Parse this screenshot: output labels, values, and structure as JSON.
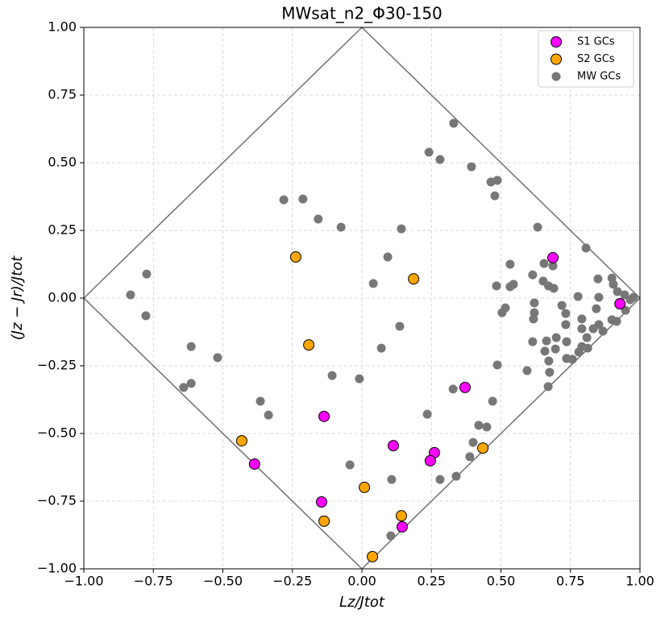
{
  "chart_data": {
    "type": "scatter",
    "title": "MWsat_n2_Φ30-150",
    "x_label": "Lz/Jtot",
    "y_label": "(Jz − Jr)/Jtot",
    "xlim": [
      -1,
      1
    ],
    "ylim": [
      -1,
      1
    ],
    "xticks": [
      {
        "value": -1,
        "label": "−1.00"
      },
      {
        "value": -0.75,
        "label": "−0.75"
      },
      {
        "value": -0.5,
        "label": "−0.50"
      },
      {
        "value": -0.25,
        "label": "−0.25"
      },
      {
        "value": 0,
        "label": "0.00"
      },
      {
        "value": 0.25,
        "label": "0.25"
      },
      {
        "value": 0.5,
        "label": "0.50"
      },
      {
        "value": 0.75,
        "label": "0.75"
      },
      {
        "value": 1,
        "label": "1.00"
      }
    ],
    "yticks": [
      {
        "value": -1,
        "label": "−1.00"
      },
      {
        "value": -0.75,
        "label": "−0.75"
      },
      {
        "value": -0.5,
        "label": "−0.50"
      },
      {
        "value": -0.25,
        "label": "−0.25"
      },
      {
        "value": 0,
        "label": "0.00"
      },
      {
        "value": 0.25,
        "label": "0.25"
      },
      {
        "value": 0.5,
        "label": "0.50"
      },
      {
        "value": 0.75,
        "label": "0.75"
      },
      {
        "value": 1,
        "label": "1.00"
      }
    ],
    "grid": true,
    "legend": "upper right",
    "series": [
      {
        "name": "S1 GCs",
        "color": "#ff00ff",
        "x": [
          0.687,
          0.928,
          0.371,
          -0.136,
          0.113,
          0.261,
          0.246,
          -0.386,
          -0.145,
          0.145
        ],
        "values": [
          0.149,
          -0.021,
          -0.33,
          -0.437,
          -0.545,
          -0.571,
          -0.601,
          -0.613,
          -0.753,
          -0.845
        ]
      },
      {
        "name": "S2 GCs",
        "color": "#ffa500",
        "x": [
          -0.238,
          0.186,
          -0.191,
          -0.432,
          0.435,
          0.009,
          0.142,
          -0.136,
          0.038
        ],
        "values": [
          0.152,
          0.071,
          -0.173,
          -0.527,
          -0.554,
          -0.699,
          -0.804,
          -0.824,
          -0.955
        ]
      },
      {
        "name": "MW GCs",
        "color": "#777777",
        "x": [
          0.33,
          0.241,
          0.281,
          0.394,
          0.487,
          0.464,
          0.478,
          -0.281,
          -0.212,
          -0.157,
          -0.075,
          0.142,
          0.632,
          0.806,
          0.093,
          0.533,
          0.655,
          0.687,
          -0.774,
          0.041,
          0.614,
          0.545,
          0.533,
          0.484,
          0.652,
          0.671,
          0.69,
          0.849,
          0.899,
          0.904,
          0.777,
          0.852,
          0.919,
          0.945,
          0.965,
          0.948,
          0.977,
          -0.832,
          0.516,
          0.504,
          0.719,
          0.62,
          0.62,
          0.733,
          0.843,
          -0.777,
          0.617,
          0.791,
          0.899,
          0.916,
          0.733,
          0.852,
          0.791,
          0.832,
          0.136,
          0.867,
          0.699,
          0.809,
          0.614,
          0.736,
          0.664,
          -0.614,
          0.07,
          0.791,
          0.812,
          0.78,
          0.696,
          0.658,
          -0.519,
          0.736,
          0.757,
          0.672,
          0.594,
          0.675,
          0.487,
          -0.107,
          -0.009,
          -0.614,
          -0.641,
          0.67,
          0.328,
          -0.365,
          0.47,
          -0.336,
          0.235,
          0.42,
          0.449,
          0.4,
          -0.043,
          0.388,
          0.107,
          0.339,
          0.281,
          0.104
        ],
        "values": [
          0.646,
          0.539,
          0.512,
          0.485,
          0.435,
          0.429,
          0.378,
          0.363,
          0.366,
          0.292,
          0.262,
          0.256,
          0.262,
          0.185,
          0.152,
          0.125,
          0.128,
          0.119,
          0.089,
          0.054,
          0.086,
          0.051,
          0.042,
          0.045,
          0.063,
          0.045,
          0.036,
          0.071,
          0.074,
          0.051,
          0.006,
          0.003,
          0.024,
          0.012,
          -0.006,
          -0.045,
          0.003,
          0.012,
          -0.036,
          -0.054,
          -0.027,
          -0.018,
          -0.054,
          -0.057,
          -0.039,
          -0.065,
          -0.077,
          -0.077,
          -0.08,
          -0.086,
          -0.098,
          -0.098,
          -0.113,
          -0.113,
          -0.104,
          -0.122,
          -0.146,
          -0.146,
          -0.161,
          -0.161,
          -0.158,
          -0.179,
          -0.185,
          -0.179,
          -0.185,
          -0.199,
          -0.188,
          -0.196,
          -0.22,
          -0.223,
          -0.226,
          -0.232,
          -0.268,
          -0.274,
          -0.247,
          -0.286,
          -0.298,
          -0.315,
          -0.33,
          -0.327,
          -0.336,
          -0.381,
          -0.381,
          -0.432,
          -0.429,
          -0.47,
          -0.476,
          -0.533,
          -0.616,
          -0.586,
          -0.67,
          -0.658,
          -0.67,
          -0.878
        ]
      }
    ]
  }
}
